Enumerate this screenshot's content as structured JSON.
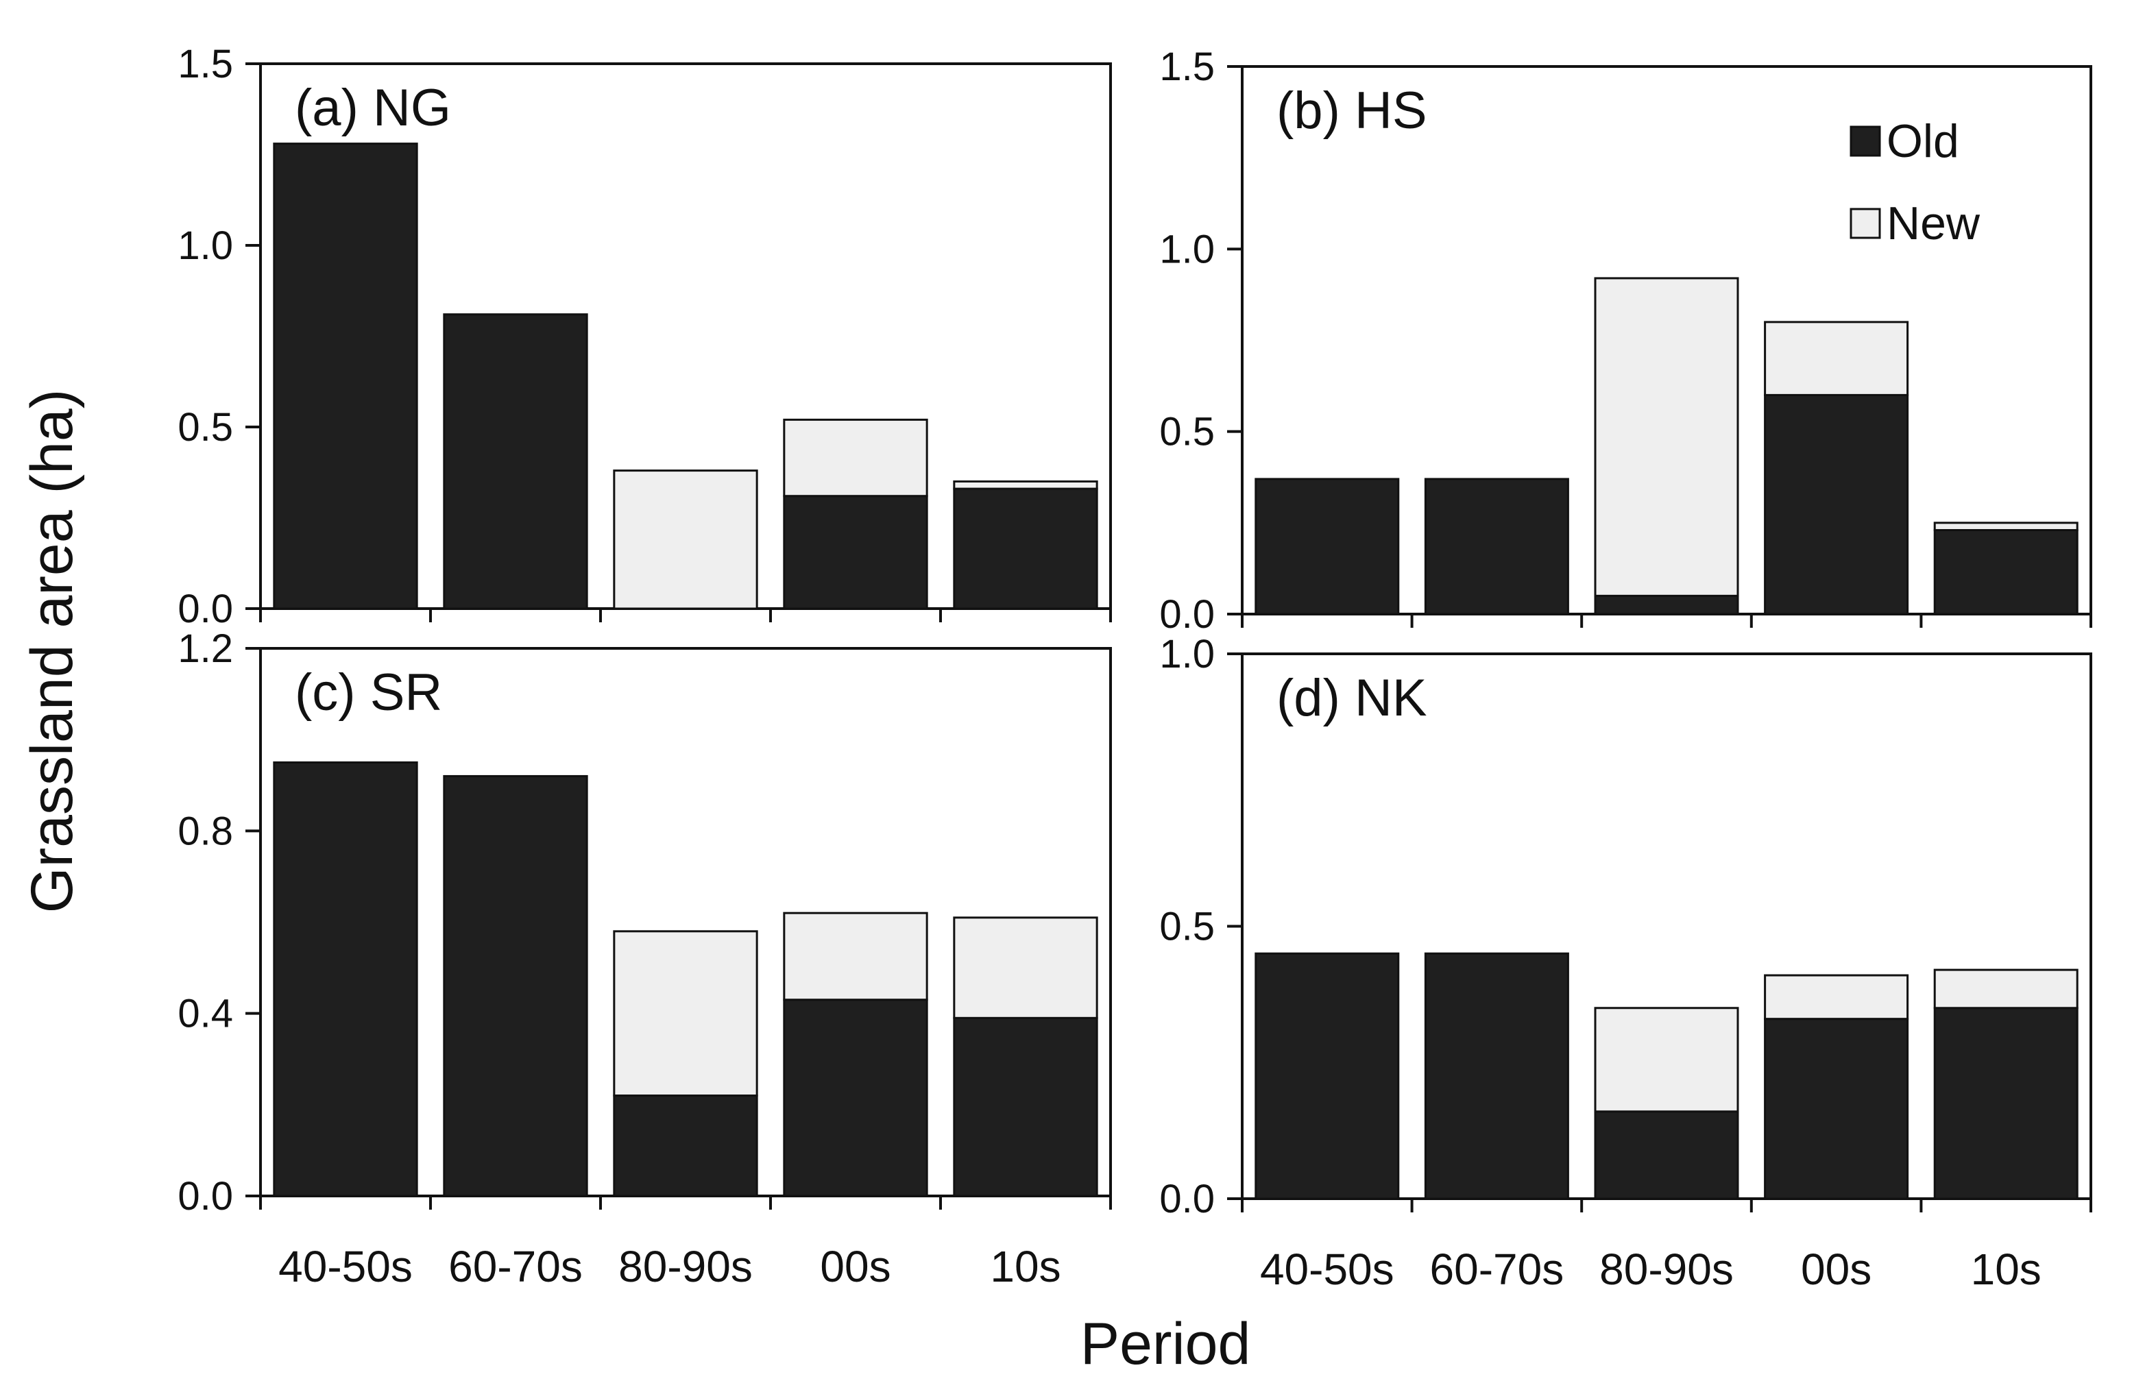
{
  "colors": {
    "old": "#1f1f1f",
    "new": "#efefef",
    "stroke": "#111111"
  },
  "x_axis_label": "Period",
  "y_axis_label": "Grassland area (ha)",
  "legend": [
    {
      "name": "Old",
      "color": "#1f1f1f"
    },
    {
      "name": "New",
      "color": "#efefef"
    }
  ],
  "chart_data": [
    {
      "type": "bar",
      "stacked": true,
      "title": "(a) NG",
      "categories": [
        "40-50s",
        "60-70s",
        "80-90s",
        "00s",
        "10s"
      ],
      "series": [
        {
          "name": "Old",
          "values": [
            1.28,
            0.81,
            0.0,
            0.31,
            0.33
          ]
        },
        {
          "name": "New",
          "values": [
            0.0,
            0.0,
            0.38,
            0.21,
            0.02
          ]
        }
      ],
      "ylim": [
        0,
        1.5
      ],
      "yticks": [
        0.0,
        0.5,
        1.0,
        1.5
      ],
      "ytick_labels": [
        "0.0",
        "0.5",
        "1.0",
        "1.5"
      ],
      "show_xtick_labels": false,
      "legend": false
    },
    {
      "type": "bar",
      "stacked": true,
      "title": "(b) HS",
      "categories": [
        "40-50s",
        "60-70s",
        "80-90s",
        "00s",
        "10s"
      ],
      "series": [
        {
          "name": "Old",
          "values": [
            0.37,
            0.37,
            0.05,
            0.6,
            0.23
          ]
        },
        {
          "name": "New",
          "values": [
            0.0,
            0.0,
            0.87,
            0.2,
            0.02
          ]
        }
      ],
      "ylim": [
        0,
        1.5
      ],
      "yticks": [
        0.0,
        0.5,
        1.0,
        1.5
      ],
      "ytick_labels": [
        "0.0",
        "0.5",
        "1.0",
        "1.5"
      ],
      "show_xtick_labels": false,
      "legend": true
    },
    {
      "type": "bar",
      "stacked": true,
      "title": "(c) SR",
      "categories": [
        "40-50s",
        "60-70s",
        "80-90s",
        "00s",
        "10s"
      ],
      "series": [
        {
          "name": "Old",
          "values": [
            0.95,
            0.92,
            0.22,
            0.43,
            0.39
          ]
        },
        {
          "name": "New",
          "values": [
            0.0,
            0.0,
            0.36,
            0.19,
            0.22
          ]
        }
      ],
      "ylim": [
        0,
        1.2
      ],
      "yticks": [
        0.0,
        0.4,
        0.8,
        1.2
      ],
      "ytick_labels": [
        "0.0",
        "0.4",
        "0.8",
        "1.2"
      ],
      "show_xtick_labels": true,
      "legend": false
    },
    {
      "type": "bar",
      "stacked": true,
      "title": "(d) NK",
      "categories": [
        "40-50s",
        "60-70s",
        "80-90s",
        "00s",
        "10s"
      ],
      "series": [
        {
          "name": "Old",
          "values": [
            0.45,
            0.45,
            0.16,
            0.33,
            0.35
          ]
        },
        {
          "name": "New",
          "values": [
            0.0,
            0.0,
            0.19,
            0.08,
            0.07
          ]
        }
      ],
      "ylim": [
        0,
        1.0
      ],
      "yticks": [
        0.0,
        0.5,
        1.0
      ],
      "ytick_labels": [
        "0.0",
        "0.5",
        "1.0"
      ],
      "show_xtick_labels": true,
      "legend": false
    }
  ]
}
